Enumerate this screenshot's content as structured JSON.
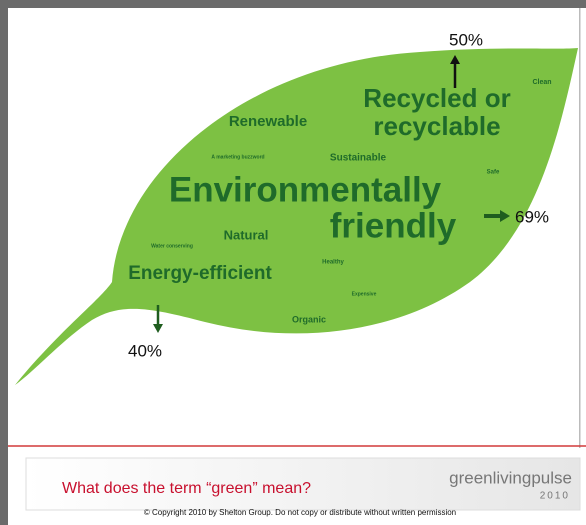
{
  "words": [
    {
      "lines": [
        "Recycled or",
        "recyclable"
      ]
    },
    {
      "lines": [
        "Renewable"
      ]
    },
    {
      "lines": [
        "Clean"
      ]
    },
    {
      "lines": [
        "A marketing buzzword"
      ]
    },
    {
      "lines": [
        "Sustainable"
      ]
    },
    {
      "lines": [
        "Safe"
      ]
    },
    {
      "lines": [
        "Environmentally",
        "friendly"
      ]
    },
    {
      "lines": [
        "Natural"
      ]
    },
    {
      "lines": [
        "Water conserving"
      ]
    },
    {
      "lines": [
        "Healthy"
      ]
    },
    {
      "lines": [
        "Energy-efficient"
      ]
    },
    {
      "lines": [
        "Expensive"
      ]
    },
    {
      "lines": [
        "Organic"
      ]
    }
  ],
  "callouts": [
    "50%",
    "69%",
    "40%"
  ],
  "footer": {
    "question": "What does the term “green” mean?",
    "logo": "greenlivingpulse",
    "logo_year": "2010",
    "copyright": "© Copyright 2010 by Shelton Group. Do not copy or distribute without written permission"
  }
}
